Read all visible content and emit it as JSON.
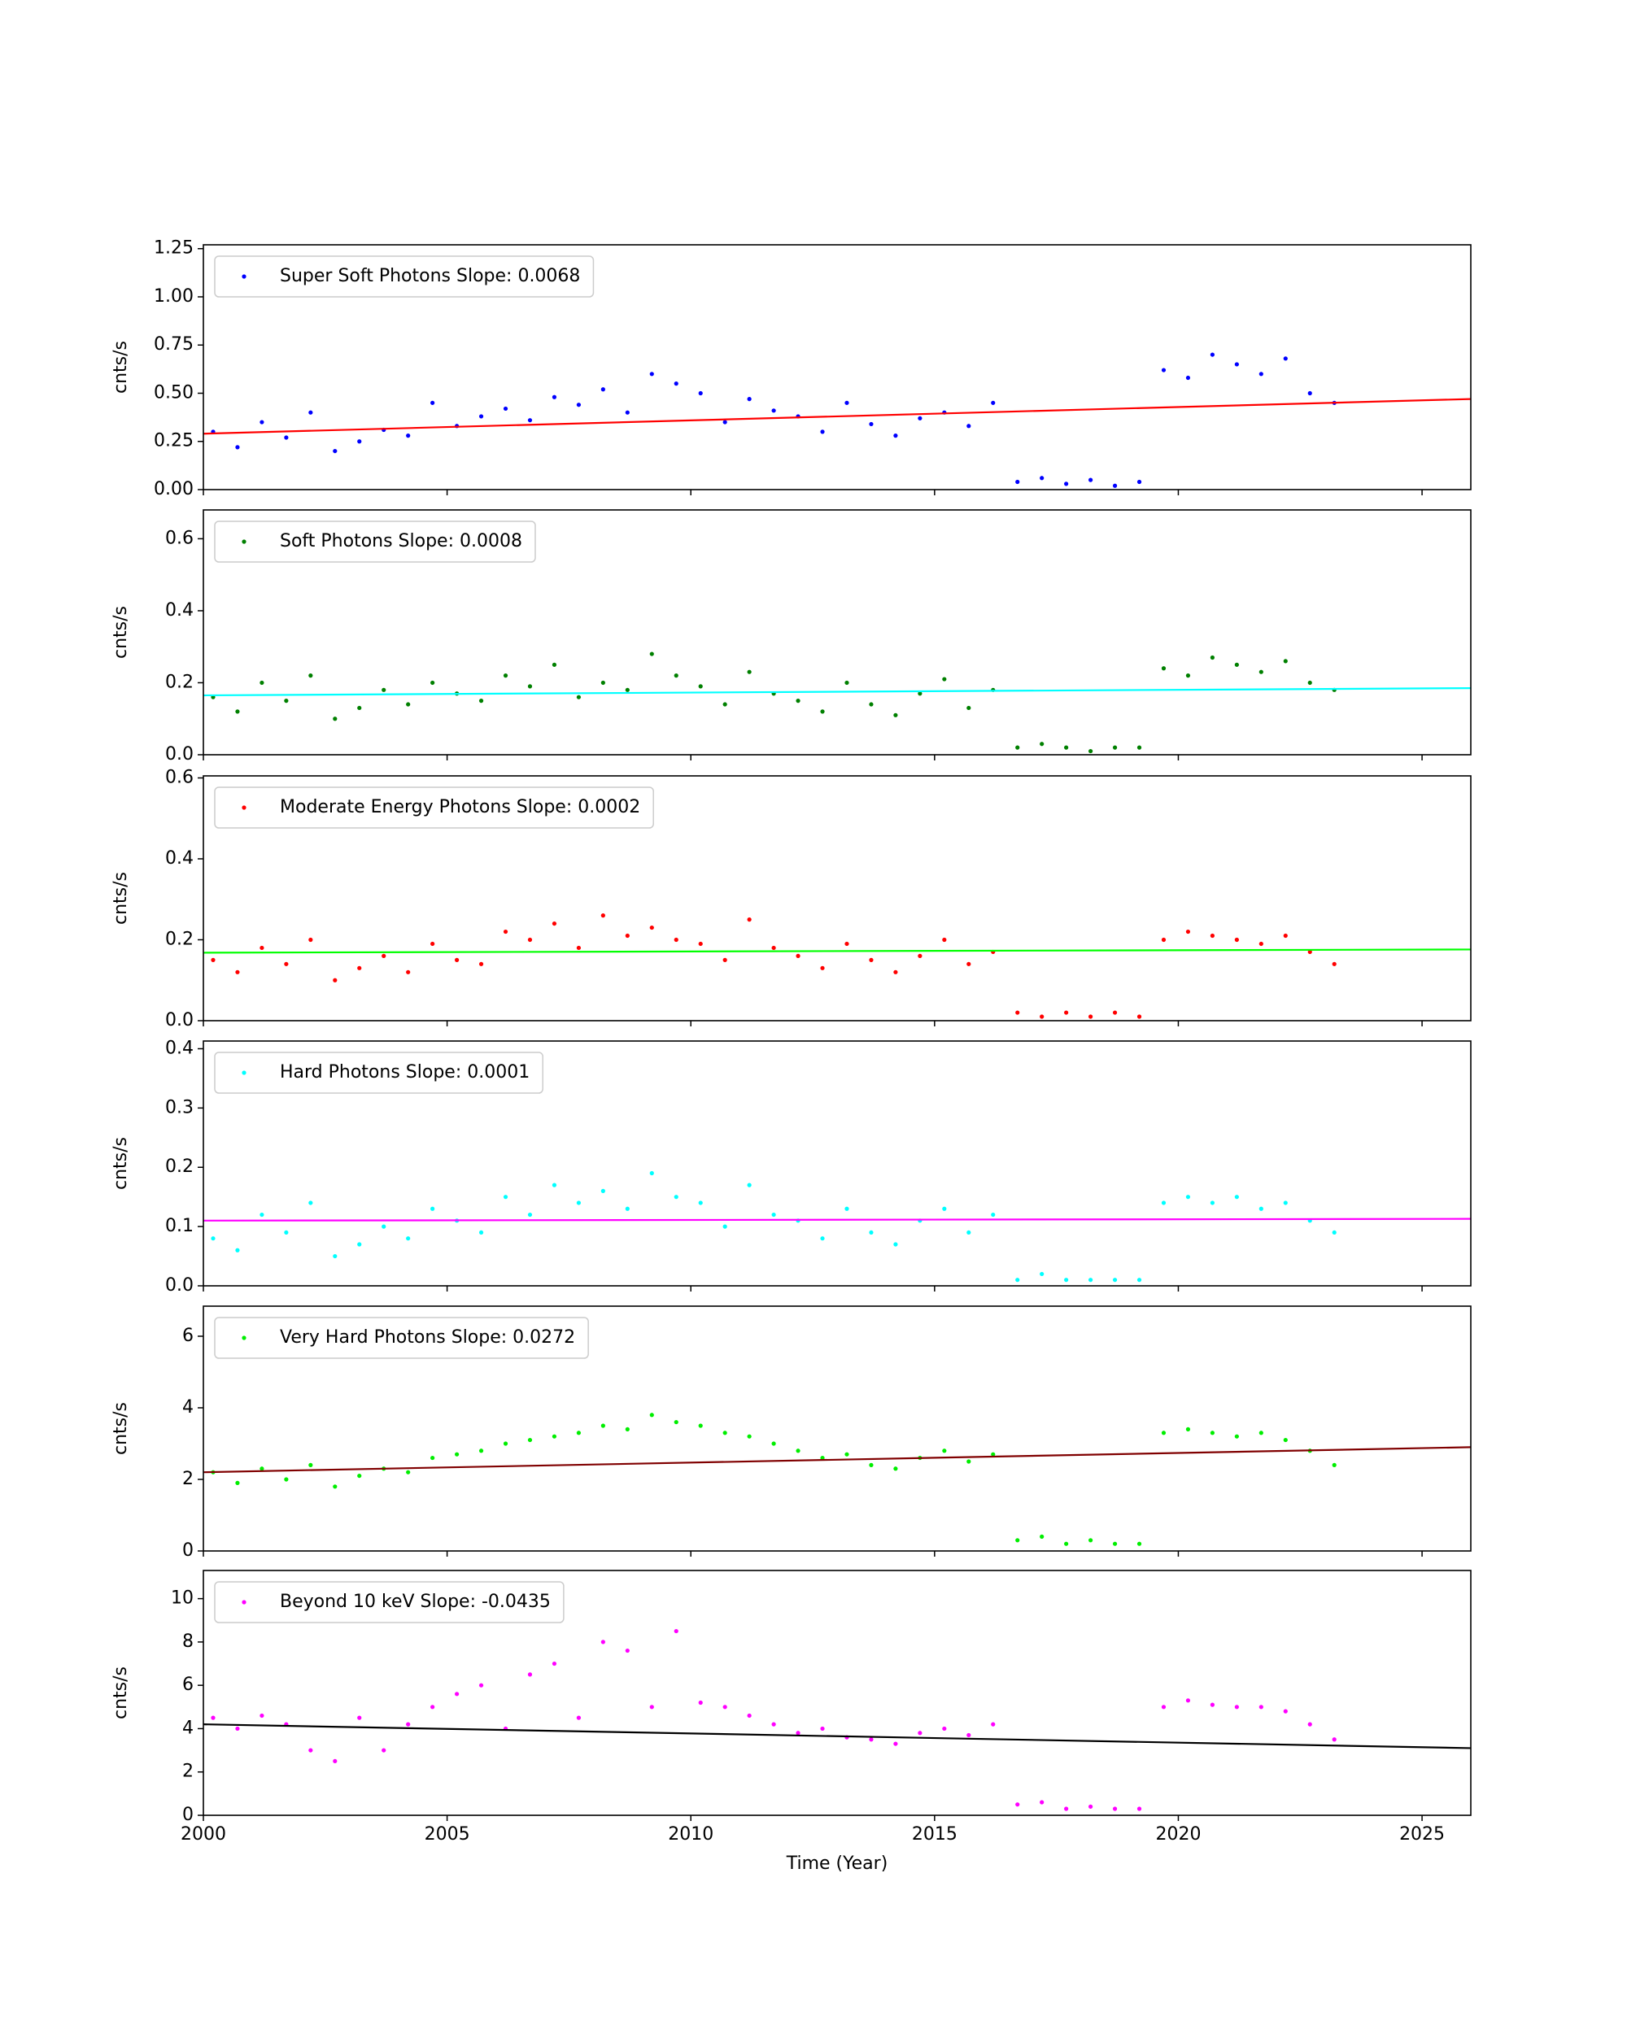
{
  "chart_data": [
    {
      "type": "scatter",
      "ylabel": "cnts/s",
      "xlim": [
        2000,
        2026
      ],
      "xticks": [
        2000,
        2005,
        2010,
        2015,
        2020,
        2025
      ],
      "ylim": [
        0,
        1.27
      ],
      "yticks": [
        {
          "value": 0,
          "label": "0.00"
        },
        0.25,
        {
          "value": 0.5,
          "label": "0.50"
        },
        0.75,
        {
          "value": 1,
          "label": "1.00"
        },
        1.25
      ],
      "legend": "upper left",
      "x": [
        2000.2,
        2000.7,
        2001.2,
        2001.7,
        2002.2,
        2002.7,
        2003.2,
        2003.7,
        2004.2,
        2004.7,
        2005.2,
        2005.7,
        2006.2,
        2006.7,
        2007.2,
        2007.7,
        2008.2,
        2008.7,
        2009.2,
        2009.7,
        2010.2,
        2010.7,
        2011.2,
        2011.7,
        2012.2,
        2012.7,
        2013.2,
        2013.7,
        2014.2,
        2014.7,
        2015.2,
        2015.7,
        2016.2,
        2016.7,
        2017.2,
        2017.7,
        2018.2,
        2018.7,
        2019.2,
        2019.7,
        2020.2,
        2020.7,
        2021.2,
        2021.7,
        2022.2,
        2022.7,
        2023.2
      ],
      "series": [
        {
          "name": "Super Soft Photons Slope: 0.0068",
          "color": "#0000ff",
          "values": [
            0.3,
            0.22,
            0.35,
            0.27,
            0.4,
            0.2,
            0.25,
            0.31,
            0.28,
            0.45,
            0.33,
            0.38,
            0.42,
            0.36,
            0.48,
            0.44,
            0.52,
            0.4,
            0.6,
            0.55,
            0.5,
            0.35,
            0.47,
            0.41,
            0.38,
            0.3,
            0.45,
            0.34,
            0.28,
            0.37,
            0.4,
            0.33,
            0.45,
            0.04,
            0.06,
            0.03,
            0.05,
            0.02,
            0.04,
            0.62,
            0.58,
            0.7,
            0.65,
            0.6,
            0.68,
            0.5,
            0.45
          ]
        }
      ],
      "fit": {
        "color": "#ff0000",
        "x": [
          2000,
          2026
        ],
        "values": [
          0.29,
          0.47
        ]
      }
    },
    {
      "type": "scatter",
      "ylabel": "cnts/s",
      "xlim": [
        2000,
        2026
      ],
      "xticks": [
        2000,
        2005,
        2010,
        2015,
        2020,
        2025
      ],
      "ylim": [
        0,
        0.68
      ],
      "yticks": [
        {
          "value": 0,
          "label": "0.0"
        },
        0.2,
        0.4,
        0.6
      ],
      "legend": "upper left",
      "x": [
        2000.2,
        2000.7,
        2001.2,
        2001.7,
        2002.2,
        2002.7,
        2003.2,
        2003.7,
        2004.2,
        2004.7,
        2005.2,
        2005.7,
        2006.2,
        2006.7,
        2007.2,
        2007.7,
        2008.2,
        2008.7,
        2009.2,
        2009.7,
        2010.2,
        2010.7,
        2011.2,
        2011.7,
        2012.2,
        2012.7,
        2013.2,
        2013.7,
        2014.2,
        2014.7,
        2015.2,
        2015.7,
        2016.2,
        2016.7,
        2017.2,
        2017.7,
        2018.2,
        2018.7,
        2019.2,
        2019.7,
        2020.2,
        2020.7,
        2021.2,
        2021.7,
        2022.2,
        2022.7,
        2023.2
      ],
      "series": [
        {
          "name": "Soft Photons Slope: 0.0008",
          "color": "#008000",
          "values": [
            0.16,
            0.12,
            0.2,
            0.15,
            0.22,
            0.1,
            0.13,
            0.18,
            0.14,
            0.2,
            0.17,
            0.15,
            0.22,
            0.19,
            0.25,
            0.16,
            0.2,
            0.18,
            0.28,
            0.22,
            0.19,
            0.14,
            0.23,
            0.17,
            0.15,
            0.12,
            0.2,
            0.14,
            0.11,
            0.17,
            0.21,
            0.13,
            0.18,
            0.02,
            0.03,
            0.02,
            0.01,
            0.02,
            0.02,
            0.24,
            0.22,
            0.27,
            0.25,
            0.23,
            0.26,
            0.2,
            0.18
          ]
        }
      ],
      "fit": {
        "color": "#00ffff",
        "x": [
          2000,
          2026
        ],
        "values": [
          0.165,
          0.185
        ]
      }
    },
    {
      "type": "scatter",
      "ylabel": "cnts/s",
      "xlim": [
        2000,
        2026
      ],
      "xticks": [
        2000,
        2005,
        2010,
        2015,
        2020,
        2025
      ],
      "ylim": [
        0,
        0.605
      ],
      "yticks": [
        {
          "value": 0,
          "label": "0.0"
        },
        0.2,
        0.4,
        0.6
      ],
      "legend": "upper left",
      "x": [
        2000.2,
        2000.7,
        2001.2,
        2001.7,
        2002.2,
        2002.7,
        2003.2,
        2003.7,
        2004.2,
        2004.7,
        2005.2,
        2005.7,
        2006.2,
        2006.7,
        2007.2,
        2007.7,
        2008.2,
        2008.7,
        2009.2,
        2009.7,
        2010.2,
        2010.7,
        2011.2,
        2011.7,
        2012.2,
        2012.7,
        2013.2,
        2013.7,
        2014.2,
        2014.7,
        2015.2,
        2015.7,
        2016.2,
        2016.7,
        2017.2,
        2017.7,
        2018.2,
        2018.7,
        2019.2,
        2019.7,
        2020.2,
        2020.7,
        2021.2,
        2021.7,
        2022.2,
        2022.7,
        2023.2
      ],
      "series": [
        {
          "name": "Moderate Energy Photons Slope: 0.0002",
          "color": "#ff0000",
          "values": [
            0.15,
            0.12,
            0.18,
            0.14,
            0.2,
            0.1,
            0.13,
            0.16,
            0.12,
            0.19,
            0.15,
            0.14,
            0.22,
            0.2,
            0.24,
            0.18,
            0.26,
            0.21,
            0.23,
            0.2,
            0.19,
            0.15,
            0.25,
            0.18,
            0.16,
            0.13,
            0.19,
            0.15,
            0.12,
            0.16,
            0.2,
            0.14,
            0.17,
            0.02,
            0.01,
            0.02,
            0.01,
            0.02,
            0.01,
            0.2,
            0.22,
            0.21,
            0.2,
            0.19,
            0.21,
            0.17,
            0.14
          ]
        }
      ],
      "fit": {
        "color": "#00ff00",
        "x": [
          2000,
          2026
        ],
        "values": [
          0.168,
          0.176
        ]
      }
    },
    {
      "type": "scatter",
      "ylabel": "cnts/s",
      "xlim": [
        2000,
        2026
      ],
      "xticks": [
        2000,
        2005,
        2010,
        2015,
        2020,
        2025
      ],
      "ylim": [
        0,
        0.413
      ],
      "yticks": [
        {
          "value": 0,
          "label": "0.0"
        },
        0.1,
        0.2,
        0.3,
        0.4
      ],
      "legend": "upper left",
      "x": [
        2000.2,
        2000.7,
        2001.2,
        2001.7,
        2002.2,
        2002.7,
        2003.2,
        2003.7,
        2004.2,
        2004.7,
        2005.2,
        2005.7,
        2006.2,
        2006.7,
        2007.2,
        2007.7,
        2008.2,
        2008.7,
        2009.2,
        2009.7,
        2010.2,
        2010.7,
        2011.2,
        2011.7,
        2012.2,
        2012.7,
        2013.2,
        2013.7,
        2014.2,
        2014.7,
        2015.2,
        2015.7,
        2016.2,
        2016.7,
        2017.2,
        2017.7,
        2018.2,
        2018.7,
        2019.2,
        2019.7,
        2020.2,
        2020.7,
        2021.2,
        2021.7,
        2022.2,
        2022.7,
        2023.2
      ],
      "series": [
        {
          "name": "Hard Photons Slope: 0.0001",
          "color": "#00ffff",
          "values": [
            0.08,
            0.06,
            0.12,
            0.09,
            0.14,
            0.05,
            0.07,
            0.1,
            0.08,
            0.13,
            0.11,
            0.09,
            0.15,
            0.12,
            0.17,
            0.14,
            0.16,
            0.13,
            0.19,
            0.15,
            0.14,
            0.1,
            0.17,
            0.12,
            0.11,
            0.08,
            0.13,
            0.09,
            0.07,
            0.11,
            0.13,
            0.09,
            0.12,
            0.01,
            0.02,
            0.01,
            0.01,
            0.01,
            0.01,
            0.14,
            0.15,
            0.14,
            0.15,
            0.13,
            0.14,
            0.11,
            0.09
          ]
        }
      ],
      "fit": {
        "color": "#ff00ff",
        "x": [
          2000,
          2026
        ],
        "values": [
          0.11,
          0.113
        ]
      }
    },
    {
      "type": "scatter",
      "ylabel": "cnts/s",
      "xlim": [
        2000,
        2026
      ],
      "xticks": [
        2000,
        2005,
        2010,
        2015,
        2020,
        2025
      ],
      "ylim": [
        0,
        6.84
      ],
      "yticks": [
        0,
        2,
        4,
        6
      ],
      "legend": "upper left",
      "x": [
        2000.2,
        2000.7,
        2001.2,
        2001.7,
        2002.2,
        2002.7,
        2003.2,
        2003.7,
        2004.2,
        2004.7,
        2005.2,
        2005.7,
        2006.2,
        2006.7,
        2007.2,
        2007.7,
        2008.2,
        2008.7,
        2009.2,
        2009.7,
        2010.2,
        2010.7,
        2011.2,
        2011.7,
        2012.2,
        2012.7,
        2013.2,
        2013.7,
        2014.2,
        2014.7,
        2015.2,
        2015.7,
        2016.2,
        2016.7,
        2017.2,
        2017.7,
        2018.2,
        2018.7,
        2019.2,
        2019.7,
        2020.2,
        2020.7,
        2021.2,
        2021.7,
        2022.2,
        2022.7,
        2023.2
      ],
      "series": [
        {
          "name": "Very Hard Photons Slope: 0.0272",
          "color": "#00ee00",
          "values": [
            2.2,
            1.9,
            2.3,
            2.0,
            2.4,
            1.8,
            2.1,
            2.3,
            2.2,
            2.6,
            2.7,
            2.8,
            3.0,
            3.1,
            3.2,
            3.3,
            3.5,
            3.4,
            3.8,
            3.6,
            3.5,
            3.3,
            3.2,
            3.0,
            2.8,
            2.6,
            2.7,
            2.4,
            2.3,
            2.6,
            2.8,
            2.5,
            2.7,
            0.3,
            0.4,
            0.2,
            0.3,
            0.2,
            0.2,
            3.3,
            3.4,
            3.3,
            3.2,
            3.3,
            3.1,
            2.8,
            2.4
          ]
        }
      ],
      "fit": {
        "color": "#800000",
        "x": [
          2000,
          2026
        ],
        "values": [
          2.2,
          2.9
        ]
      }
    },
    {
      "type": "scatter",
      "ylabel": "cnts/s",
      "xlabel": "Time (Year)",
      "xlim": [
        2000,
        2026
      ],
      "xticks": [
        2000,
        2005,
        2010,
        2015,
        2020,
        2025
      ],
      "ylim": [
        0,
        11.3
      ],
      "yticks": [
        0,
        2,
        4,
        6,
        8,
        10
      ],
      "legend": "upper left",
      "x": [
        2000.2,
        2000.7,
        2001.2,
        2001.7,
        2002.2,
        2002.7,
        2003.2,
        2003.7,
        2004.2,
        2004.7,
        2005.2,
        2005.7,
        2006.2,
        2006.7,
        2007.2,
        2007.7,
        2008.2,
        2008.7,
        2009.2,
        2009.7,
        2010.2,
        2010.7,
        2011.2,
        2011.7,
        2012.2,
        2012.7,
        2013.2,
        2013.7,
        2014.2,
        2014.7,
        2015.2,
        2015.7,
        2016.2,
        2016.7,
        2017.2,
        2017.7,
        2018.2,
        2018.7,
        2019.2,
        2019.7,
        2020.2,
        2020.7,
        2021.2,
        2021.7,
        2022.2,
        2022.7,
        2023.2
      ],
      "series": [
        {
          "name": "Beyond 10 keV Slope: -0.0435",
          "color": "#ff00ff",
          "values": [
            4.5,
            4.0,
            4.6,
            4.2,
            3.0,
            2.5,
            4.5,
            3.0,
            4.2,
            5.0,
            5.6,
            6.0,
            4.0,
            6.5,
            7.0,
            4.5,
            8.0,
            7.6,
            5.0,
            8.5,
            5.2,
            5.0,
            4.6,
            4.2,
            3.8,
            4.0,
            3.6,
            3.5,
            3.3,
            3.8,
            4.0,
            3.7,
            4.2,
            0.5,
            0.6,
            0.3,
            0.4,
            0.3,
            0.3,
            5.0,
            5.3,
            5.1,
            5.0,
            5.0,
            4.8,
            4.2,
            3.5
          ]
        }
      ],
      "fit": {
        "color": "#000000",
        "x": [
          2000,
          2026
        ],
        "values": [
          4.2,
          3.1
        ]
      }
    }
  ]
}
